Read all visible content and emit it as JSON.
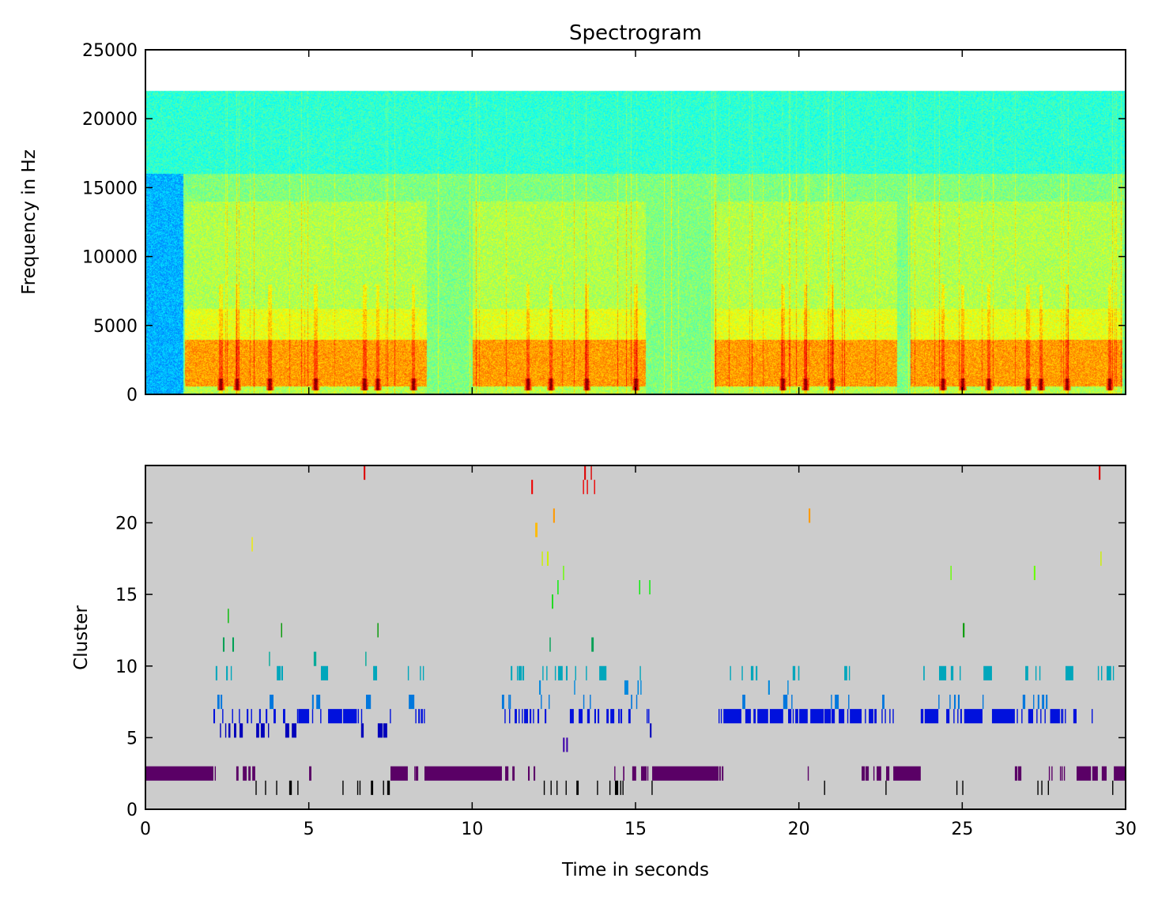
{
  "chart_data": [
    {
      "type": "heatmap",
      "title": "Spectrogram",
      "xlabel": "",
      "ylabel": "Frequency in Hz",
      "xlim": [
        0,
        30
      ],
      "ylim": [
        0,
        25000
      ],
      "max_frequency": 22050,
      "colormap": "jet",
      "xticks": [
        0,
        5,
        10,
        15,
        20,
        25,
        30
      ],
      "yticks": [
        0,
        5000,
        10000,
        15000,
        20000,
        25000
      ],
      "ytick_labels": [
        "0",
        "5000",
        "10000",
        "15000",
        "20000",
        "25000"
      ],
      "active_regions": [
        [
          1.2,
          8.6
        ],
        [
          10.0,
          15.3
        ],
        [
          17.4,
          23.0
        ],
        [
          23.4,
          29.9
        ]
      ],
      "onset_events": [
        2.3,
        2.8,
        3.8,
        5.2,
        6.7,
        7.1,
        8.2,
        11.7,
        12.4,
        13.5,
        15.0,
        19.5,
        20.2,
        21.0,
        24.4,
        25.0,
        25.8,
        27.0,
        27.4,
        28.2,
        29.5
      ]
    },
    {
      "type": "bar",
      "subtype": "event-raster",
      "title": "",
      "xlabel": "Time in seconds",
      "ylabel": "Cluster",
      "xlim": [
        0,
        30
      ],
      "ylim": [
        0,
        24
      ],
      "background": "#cccccc",
      "xticks": [
        0,
        5,
        10,
        15,
        20,
        25,
        30
      ],
      "xtick_labels": [
        "0",
        "5",
        "10",
        "15",
        "20",
        "25",
        "30"
      ],
      "yticks": [
        0,
        5,
        10,
        15,
        20
      ],
      "ytick_labels": [
        "0",
        "5",
        "10",
        "15",
        "20"
      ],
      "clusters": [
        {
          "id": 1,
          "color": "#000000",
          "segments": [
            3.37,
            3.66,
            4.0,
            [
              4.4,
              4.48
            ],
            4.65,
            6.03,
            6.48,
            6.55,
            [
              6.9,
              6.97
            ],
            7.27,
            [
              7.4,
              7.48
            ],
            12.19,
            12.4,
            12.58,
            12.86,
            [
              13.19,
              13.26
            ],
            13.82,
            14.2,
            [
              14.37,
              14.47
            ],
            14.53,
            14.6,
            15.49,
            20.77,
            22.65,
            24.82,
            25.0,
            27.3,
            27.42,
            27.62,
            29.59
          ]
        },
        {
          "id": 2,
          "color": "#5a0066",
          "segments": [
            [
              0,
              2.08
            ],
            [
              2.12,
              2.15
            ],
            [
              2.78,
              2.85
            ],
            [
              2.98,
              3.1
            ],
            [
              3.15,
              3.22
            ],
            [
              3.27,
              3.36
            ],
            [
              5.01,
              5.08
            ],
            [
              7.5,
              8.03
            ],
            [
              8.23,
              8.26
            ],
            [
              8.27,
              8.35
            ],
            [
              8.54,
              10.91
            ],
            [
              11.01,
              11.11
            ],
            [
              11.23,
              11.3
            ],
            [
              11.71,
              11.76
            ],
            [
              11.88,
              11.93
            ],
            [
              14.35,
              14.37
            ],
            [
              14.62,
              14.66
            ],
            [
              14.9,
              15.02
            ],
            [
              15.17,
              15.34
            ],
            [
              15.36,
              15.39
            ],
            [
              15.51,
              17.54
            ],
            [
              17.56,
              17.61
            ],
            [
              17.64,
              17.69
            ],
            [
              20.27,
              20.3
            ],
            [
              21.92,
              22.02
            ],
            [
              22.04,
              22.14
            ],
            [
              22.28,
              22.31
            ],
            [
              22.38,
              22.52
            ],
            [
              22.67,
              22.77
            ],
            [
              22.89,
              23.73
            ],
            [
              26.61,
              26.69
            ],
            [
              26.71,
              26.81
            ],
            [
              27.65,
              27.68
            ],
            [
              27.73,
              27.75
            ],
            [
              27.99,
              28.02
            ],
            [
              28.04,
              28.06
            ],
            [
              28.11,
              28.14
            ],
            [
              28.5,
              28.94
            ],
            [
              28.98,
              29.15
            ],
            [
              29.27,
              29.42
            ],
            [
              29.64,
              30
            ]
          ]
        },
        {
          "id": 4,
          "color": "#3c00aa",
          "segments": [
            [
              12.78,
              12.83
            ],
            [
              12.88,
              12.93
            ]
          ]
        },
        {
          "id": 5,
          "color": "#0000bb",
          "segments": [
            2.28,
            2.44,
            [
              2.54,
              2.6
            ],
            [
              2.71,
              2.78
            ],
            [
              2.88,
              2.98
            ],
            [
              3.39,
              3.48
            ],
            [
              3.53,
              3.65
            ],
            3.75,
            [
              4.28,
              4.4
            ],
            [
              4.48,
              4.62
            ],
            [
              6.6,
              6.68
            ],
            [
              7.11,
              7.26
            ],
            [
              7.28,
              7.4
            ],
            [
              15.44,
              15.49
            ]
          ]
        },
        {
          "id": 6,
          "color": "#0011dd",
          "segments": [
            [
              2.08,
              2.13
            ],
            2.35,
            2.65,
            2.86,
            [
              3.1,
              3.15
            ],
            3.23,
            [
              3.48,
              3.53
            ],
            [
              3.68,
              3.73
            ],
            [
              3.92,
              3.99
            ],
            [
              4.21,
              4.28
            ],
            4.64,
            [
              4.68,
              5.01
            ],
            5.1,
            5.35,
            [
              5.59,
              6.02
            ],
            [
              6.05,
              6.47
            ],
            [
              6.5,
              6.53
            ],
            6.6,
            7.48,
            8.26,
            [
              8.35,
              8.4
            ],
            [
              8.43,
              8.49
            ],
            8.52,
            10.99,
            11.13,
            [
              11.3,
              11.37
            ],
            11.42,
            11.52,
            [
              11.59,
              11.71
            ],
            [
              11.76,
              11.81
            ],
            11.86,
            [
              12.0,
              12.05
            ],
            [
              12.22,
              12.27
            ],
            [
              12.99,
              13.11
            ],
            [
              13.26,
              13.38
            ],
            [
              13.52,
              13.6
            ],
            [
              13.74,
              13.79
            ],
            [
              13.84,
              13.89
            ],
            [
              14.11,
              14.18
            ],
            [
              14.23,
              14.35
            ],
            [
              14.47,
              14.52
            ],
            [
              14.54,
              14.59
            ],
            [
              14.78,
              14.85
            ],
            15.34,
            15.39,
            17.54,
            17.61,
            [
              17.69,
              18.24
            ],
            [
              18.36,
              18.53
            ],
            [
              18.61,
              18.68
            ],
            [
              18.73,
              19.06
            ],
            [
              19.11,
              19.52
            ],
            [
              19.67,
              19.77
            ],
            19.81,
            [
              19.89,
              19.98
            ],
            [
              20.01,
              20.27
            ],
            [
              20.35,
              20.76
            ],
            [
              20.78,
              20.98
            ],
            [
              21.0,
              21.1
            ],
            [
              21.22,
              21.39
            ],
            21.48,
            [
              21.56,
              21.92
            ],
            22.02,
            [
              22.14,
              22.28
            ],
            [
              22.31,
              22.38
            ],
            22.53,
            22.63,
            22.77,
            22.87,
            [
              23.73,
              23.81
            ],
            [
              23.85,
              24.27
            ],
            [
              24.51,
              24.61
            ],
            24.73,
            24.85,
            [
              24.94,
              24.99
            ],
            [
              25.06,
              25.62
            ],
            [
              25.91,
              26.61
            ],
            26.67,
            26.81,
            [
              27.02,
              27.17
            ],
            27.27,
            27.39,
            27.52,
            [
              27.69,
              27.99
            ],
            28.02,
            28.06,
            28.14,
            [
              28.4,
              28.5
            ],
            28.96
          ]
        },
        {
          "id": 7,
          "color": "#0077dd",
          "segments": [
            [
              2.2,
              2.27
            ],
            [
              2.3,
              2.35
            ],
            [
              3.8,
              3.92
            ],
            [
              5.1,
              5.15
            ],
            [
              5.23,
              5.35
            ],
            [
              6.75,
              6.9
            ],
            [
              8.06,
              8.23
            ],
            [
              10.91,
              10.98
            ],
            11.11,
            11.15,
            12.1,
            12.34,
            13.4,
            13.6,
            [
              14.86,
              14.9
            ],
            15.02,
            [
              18.27,
              18.36
            ],
            [
              19.52,
              19.65
            ],
            19.77,
            20.98,
            [
              21.1,
              21.22
            ],
            21.51,
            [
              22.55,
              22.62
            ],
            24.27,
            24.61,
            [
              24.75,
              24.8
            ],
            [
              24.87,
              24.92
            ],
            25.62,
            [
              26.85,
              26.93
            ],
            27.17,
            [
              27.31,
              27.36
            ],
            [
              27.44,
              27.51
            ],
            [
              27.56,
              27.61
            ]
          ]
        },
        {
          "id": 8,
          "color": "#0088dd",
          "segments": [
            [
              12.05,
              12.1
            ],
            13.12,
            [
              14.66,
              14.78
            ],
            [
              15.06,
              15.1
            ],
            15.15,
            [
              19.06,
              19.11
            ],
            19.65
          ]
        },
        {
          "id": 9,
          "color": "#00a6bb",
          "segments": [
            [
              2.15,
              2.2
            ],
            [
              2.47,
              2.52
            ],
            2.61,
            [
              4.02,
              4.14
            ],
            [
              4.16,
              4.21
            ],
            [
              5.37,
              5.59
            ],
            [
              6.97,
              7.09
            ],
            8.03,
            8.4,
            8.49,
            [
              11.18,
              11.23
            ],
            11.37,
            [
              11.42,
              11.52
            ],
            [
              11.54,
              11.59
            ],
            12.15,
            12.27,
            12.53,
            [
              12.63,
              12.77
            ],
            [
              12.87,
              12.92
            ],
            13.15,
            13.48,
            [
              13.89,
              14.11
            ],
            15.13,
            17.89,
            18.25,
            [
              18.53,
              18.61
            ],
            [
              18.68,
              18.73
            ],
            [
              19.81,
              19.89
            ],
            19.98,
            [
              19.98,
              20.01
            ],
            [
              21.39,
              21.48
            ],
            21.53,
            [
              23.81,
              23.85
            ],
            [
              24.29,
              24.51
            ],
            [
              24.65,
              24.73
            ],
            24.92,
            [
              25.65,
              25.91
            ],
            [
              26.93,
              27.02
            ],
            27.24,
            27.36,
            [
              28.16,
              28.4
            ],
            29.15,
            29.25,
            [
              29.42,
              29.56
            ],
            29.61
          ]
        },
        {
          "id": 10,
          "color": "#00aa99",
          "segments": [
            3.78,
            [
              5.15,
              5.23
            ],
            6.73
          ]
        },
        {
          "id": 11,
          "color": "#00a055",
          "segments": [
            [
              2.37,
              2.42
            ],
            [
              2.66,
              2.71
            ],
            12.37,
            [
              13.65,
              13.72
            ]
          ]
        },
        {
          "id": 12,
          "color": "#009900",
          "segments": [
            4.15,
            7.1,
            [
              25.02,
              25.07
            ]
          ]
        },
        {
          "id": 13,
          "color": "#00bb00",
          "segments": [
            2.52
          ]
        },
        {
          "id": 14,
          "color": "#00dd00",
          "segments": [
            [
              12.44,
              12.48
            ]
          ]
        },
        {
          "id": 15,
          "color": "#00f000",
          "segments": [
            12.61,
            15.11,
            15.42
          ]
        },
        {
          "id": 16,
          "color": "#66ff00",
          "segments": [
            12.78,
            24.64,
            [
              27.19,
              27.24
            ]
          ]
        },
        {
          "id": 17,
          "color": "#ccf000",
          "segments": [
            12.13,
            [
              12.29,
              12.34
            ],
            29.23
          ]
        },
        {
          "id": 18,
          "color": "#eeee00",
          "segments": [
            3.25
          ]
        },
        {
          "id": 19,
          "color": "#ffbb00",
          "segments": [
            [
              11.93,
              12.0
            ]
          ]
        },
        {
          "id": 20,
          "color": "#ff9900",
          "segments": [
            [
              12.48,
              12.53
            ],
            [
              20.3,
              20.35
            ]
          ]
        },
        {
          "id": 22,
          "color": "#ee0000",
          "segments": [
            [
              11.81,
              11.86
            ],
            13.39,
            13.51,
            13.73
          ]
        },
        {
          "id": 23,
          "color": "#dd0000",
          "segments": [
            [
              6.68,
              6.73
            ],
            [
              13.43,
              13.48
            ],
            13.63,
            [
              29.18,
              29.23
            ]
          ]
        }
      ]
    }
  ]
}
